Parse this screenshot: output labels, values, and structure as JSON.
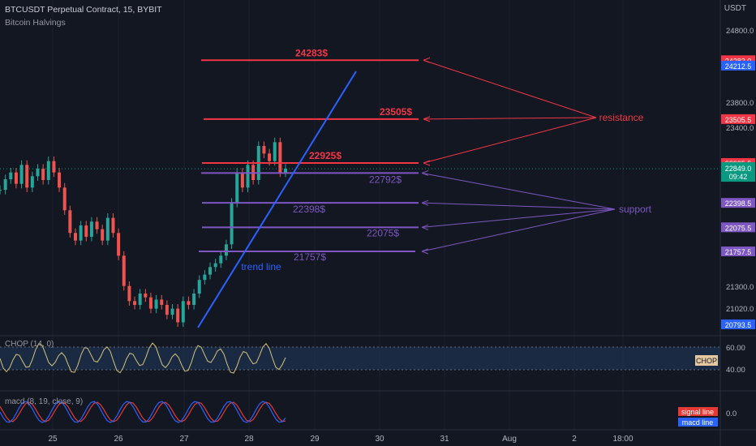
{
  "header": {
    "symbol_title": "BTCUSDT Perpetual Contract, 15, BYBIT",
    "indicator": "Bitcoin Halvings"
  },
  "currency": "USDT",
  "colors": {
    "background": "#131722",
    "resistance": "#f23645",
    "support": "#7e57c2",
    "trendline": "#2962ff",
    "chop": "#d6c27a",
    "macd_signal": "#e53935",
    "macd_line": "#2962ff",
    "price_now": "#089981"
  },
  "chart_data": {
    "type": "line",
    "x_ticks": [
      "25",
      "26",
      "27",
      "28",
      "29",
      "30",
      "31",
      "Aug",
      "2",
      "18:00"
    ],
    "y_ticks": [
      "24800.0",
      "23800.0",
      "23400.0",
      "21300.0",
      "21020.0"
    ],
    "candles_shape": [
      [
        0,
        22570
      ],
      [
        1,
        22710
      ],
      [
        2,
        22800
      ],
      [
        3,
        22650
      ],
      [
        4,
        22900
      ],
      [
        5,
        22600
      ],
      [
        6,
        22750
      ],
      [
        7,
        22850
      ],
      [
        8,
        22700
      ],
      [
        9,
        22950
      ],
      [
        10,
        22800
      ],
      [
        11,
        22600
      ],
      [
        12,
        22300
      ],
      [
        13,
        22000
      ],
      [
        14,
        21900
      ],
      [
        15,
        22100
      ],
      [
        16,
        21950
      ],
      [
        17,
        22150
      ],
      [
        18,
        22050
      ],
      [
        19,
        21900
      ],
      [
        20,
        22200
      ],
      [
        21,
        22000
      ],
      [
        22,
        21700
      ],
      [
        23,
        21300
      ],
      [
        24,
        21100
      ],
      [
        25,
        21050
      ],
      [
        26,
        21200
      ],
      [
        27,
        21150
      ],
      [
        28,
        21000
      ],
      [
        29,
        21120
      ],
      [
        30,
        21050
      ],
      [
        31,
        20920
      ],
      [
        32,
        21000
      ],
      [
        33,
        20820
      ],
      [
        34,
        21100
      ],
      [
        35,
        21050
      ],
      [
        36,
        21200
      ],
      [
        37,
        21380
      ],
      [
        38,
        21450
      ],
      [
        39,
        21550
      ],
      [
        40,
        21600
      ],
      [
        41,
        21700
      ],
      [
        42,
        21850
      ],
      [
        43,
        22400
      ],
      [
        44,
        22800
      ],
      [
        45,
        22600
      ],
      [
        46,
        22900
      ],
      [
        47,
        22700
      ],
      [
        48,
        23150
      ],
      [
        49,
        23050
      ],
      [
        50,
        22950
      ],
      [
        51,
        23200
      ],
      [
        52,
        22800
      ],
      [
        53,
        22850
      ]
    ],
    "resistance_levels": [
      {
        "label": "24283$",
        "value": 24283,
        "axis_label": "24283.0"
      },
      {
        "label": "23505$",
        "value": 23505,
        "axis_label": "23505.5"
      },
      {
        "label": "22925$",
        "value": 22925,
        "axis_label": "22925.5"
      }
    ],
    "support_levels": [
      {
        "label": "22792$",
        "value": 22792,
        "axis_label": "22792.5"
      },
      {
        "label": "22398$",
        "value": 22398,
        "axis_label": "22398.5"
      },
      {
        "label": "22075$",
        "value": 22075,
        "axis_label": "22075.5"
      },
      {
        "label": "21757$",
        "value": 21757,
        "axis_label": "21757.5"
      }
    ],
    "extra_axis_badges": [
      {
        "label": "24283.0",
        "value": 24283,
        "color": "#f23645"
      },
      {
        "label": "24212.5",
        "value": 24212,
        "color": "#2962ff"
      },
      {
        "label": "23505.5",
        "value": 23505,
        "color": "#f23645"
      },
      {
        "label": "22925.5",
        "value": 22925,
        "color": "#f23645"
      },
      {
        "label": "22792.5",
        "value": 22792,
        "color": "#7e57c2"
      },
      {
        "label": "22398.5",
        "value": 22398,
        "color": "#7e57c2"
      },
      {
        "label": "22075.5",
        "value": 22075,
        "color": "#7e57c2"
      },
      {
        "label": "21757.5",
        "value": 21757,
        "color": "#7e57c2"
      },
      {
        "label": "20793.5",
        "value": 20793,
        "color": "#2962ff"
      }
    ],
    "current_price": {
      "value": "22849.0",
      "countdown": "09:42"
    },
    "annotations": {
      "resistance": "resistance",
      "support": "support",
      "trend_line": "trend line"
    },
    "chop": {
      "label": "CHOP (14, 0)",
      "badge": "CHOP",
      "ticks": [
        "60.00",
        "40.00"
      ]
    },
    "macd": {
      "label": "macd (8, 19, close, 9)",
      "tick": "0.0",
      "legend": [
        "signal line",
        "macd line"
      ]
    }
  }
}
